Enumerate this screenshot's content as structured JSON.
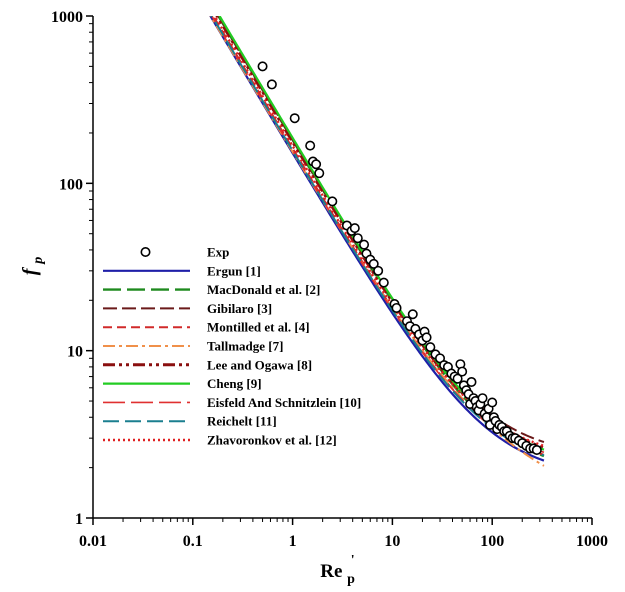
{
  "chart_data": {
    "type": "line",
    "xscale": "log",
    "yscale": "log",
    "xlim": [
      0.01,
      1000
    ],
    "ylim": [
      1,
      1000
    ],
    "grid": false,
    "legend_position": "left",
    "x_ticks": [
      "0.01",
      "0.1",
      "1",
      "10",
      "100",
      "1000"
    ],
    "y_ticks": [
      "1",
      "10",
      "100",
      "1000"
    ],
    "xlabel": {
      "base": "Re",
      "superscript": "'",
      "subscript": "p"
    },
    "ylabel": {
      "base": "f",
      "subscript": "p"
    },
    "series": [
      {
        "name": "Exp",
        "kind": "scatter",
        "color": "#000000",
        "marker": "open-circle",
        "points": [
          [
            0.5,
            500
          ],
          [
            0.62,
            390
          ],
          [
            1.05,
            245
          ],
          [
            1.5,
            168
          ],
          [
            1.6,
            135
          ],
          [
            1.72,
            130
          ],
          [
            1.85,
            115
          ],
          [
            2.5,
            78
          ],
          [
            3.5,
            56
          ],
          [
            3.9,
            52
          ],
          [
            4.2,
            54
          ],
          [
            4.5,
            47
          ],
          [
            5.2,
            43
          ],
          [
            5.5,
            38
          ],
          [
            6.0,
            35
          ],
          [
            6.5,
            33
          ],
          [
            7.2,
            30
          ],
          [
            8.2,
            25.5
          ],
          [
            10.5,
            19
          ],
          [
            11.0,
            18
          ],
          [
            14.0,
            15
          ],
          [
            15.0,
            14
          ],
          [
            16.0,
            16.5
          ],
          [
            17.0,
            13.5
          ],
          [
            18.5,
            12.5
          ],
          [
            20.0,
            11.5
          ],
          [
            21.0,
            13
          ],
          [
            22.0,
            12
          ],
          [
            24.0,
            10.5
          ],
          [
            27.0,
            9.5
          ],
          [
            30.0,
            9.0
          ],
          [
            33.0,
            8.2
          ],
          [
            36.0,
            8.0
          ],
          [
            39.0,
            7.3
          ],
          [
            42.0,
            7.0
          ],
          [
            45.0,
            6.8
          ],
          [
            48.0,
            8.3
          ],
          [
            50.0,
            7.5
          ],
          [
            52.0,
            6.2
          ],
          [
            55.0,
            5.8
          ],
          [
            58.0,
            5.5
          ],
          [
            60.0,
            4.8
          ],
          [
            62.0,
            6.5
          ],
          [
            65.0,
            5.2
          ],
          [
            68.0,
            5.0
          ],
          [
            70.0,
            4.6
          ],
          [
            73.0,
            4.4
          ],
          [
            76.0,
            4.8
          ],
          [
            80.0,
            5.2
          ],
          [
            84.0,
            4.2
          ],
          [
            88.0,
            4.0
          ],
          [
            92.0,
            4.5
          ],
          [
            95.0,
            3.6
          ],
          [
            100.0,
            4.9
          ],
          [
            104.0,
            4.0
          ],
          [
            108.0,
            3.8
          ],
          [
            112.0,
            3.4
          ],
          [
            118.0,
            3.6
          ],
          [
            125.0,
            3.5
          ],
          [
            132.0,
            3.3
          ],
          [
            140.0,
            3.3
          ],
          [
            150.0,
            3.1
          ],
          [
            160.0,
            3.0
          ],
          [
            170.0,
            3.0
          ],
          [
            185.0,
            2.9
          ],
          [
            200.0,
            2.8
          ],
          [
            220.0,
            2.7
          ],
          [
            240.0,
            2.6
          ],
          [
            260.0,
            2.6
          ],
          [
            280.0,
            2.55
          ]
        ]
      },
      {
        "name": "Ergun [1]",
        "kind": "line",
        "color": "#1f1fa8",
        "dash": "",
        "width": 2.2,
        "A": 150,
        "B": 1.75
      },
      {
        "name": "MacDonald et al. [2]",
        "kind": "line",
        "color": "#1f8a1f",
        "dash": "18,6",
        "width": 2.4,
        "A": 180,
        "B": 1.8
      },
      {
        "name": "Gibilaro [3]",
        "kind": "line",
        "color": "#6b1a1a",
        "dash": "14,5",
        "width": 2.0,
        "A": 180,
        "B": 2.3
      },
      {
        "name": "Montilled et al. [4]",
        "kind": "line",
        "color": "#d12a2a",
        "dash": "9,5",
        "width": 2.0,
        "A": 160,
        "B": 1.9
      },
      {
        "name": "Tallmadge [7]",
        "kind": "line",
        "color": "#f0904a",
        "dash": "12,4,3,4",
        "width": 2.0,
        "A": 150,
        "B": 4.2,
        "pow": -0.167
      },
      {
        "name": "Lee and Ogawa [8]",
        "kind": "line",
        "color": "#8a0f0f",
        "dash": "12,4,3,4,3,4",
        "width": 3.0,
        "A": 175,
        "B": 2.1
      },
      {
        "name": "Cheng [9]",
        "kind": "line",
        "color": "#22cc22",
        "dash": "",
        "width": 2.2,
        "A": 185,
        "B": 2.0
      },
      {
        "name": "Eisfeld And Schnitzlein [10]",
        "kind": "line",
        "color": "#e03030",
        "dash": "22,6",
        "width": 1.6,
        "A": 155,
        "B": 2.0
      },
      {
        "name": "Reichelt [11]",
        "kind": "line",
        "color": "#1a7f8f",
        "dash": "16,6",
        "width": 2.0,
        "A": 155,
        "B": 1.9
      },
      {
        "name": "Zhavoronkov et al. [12]",
        "kind": "line",
        "color": "#e02020",
        "dash": "2,3",
        "width": 2.4,
        "A": 165,
        "B": 2.2
      }
    ]
  }
}
